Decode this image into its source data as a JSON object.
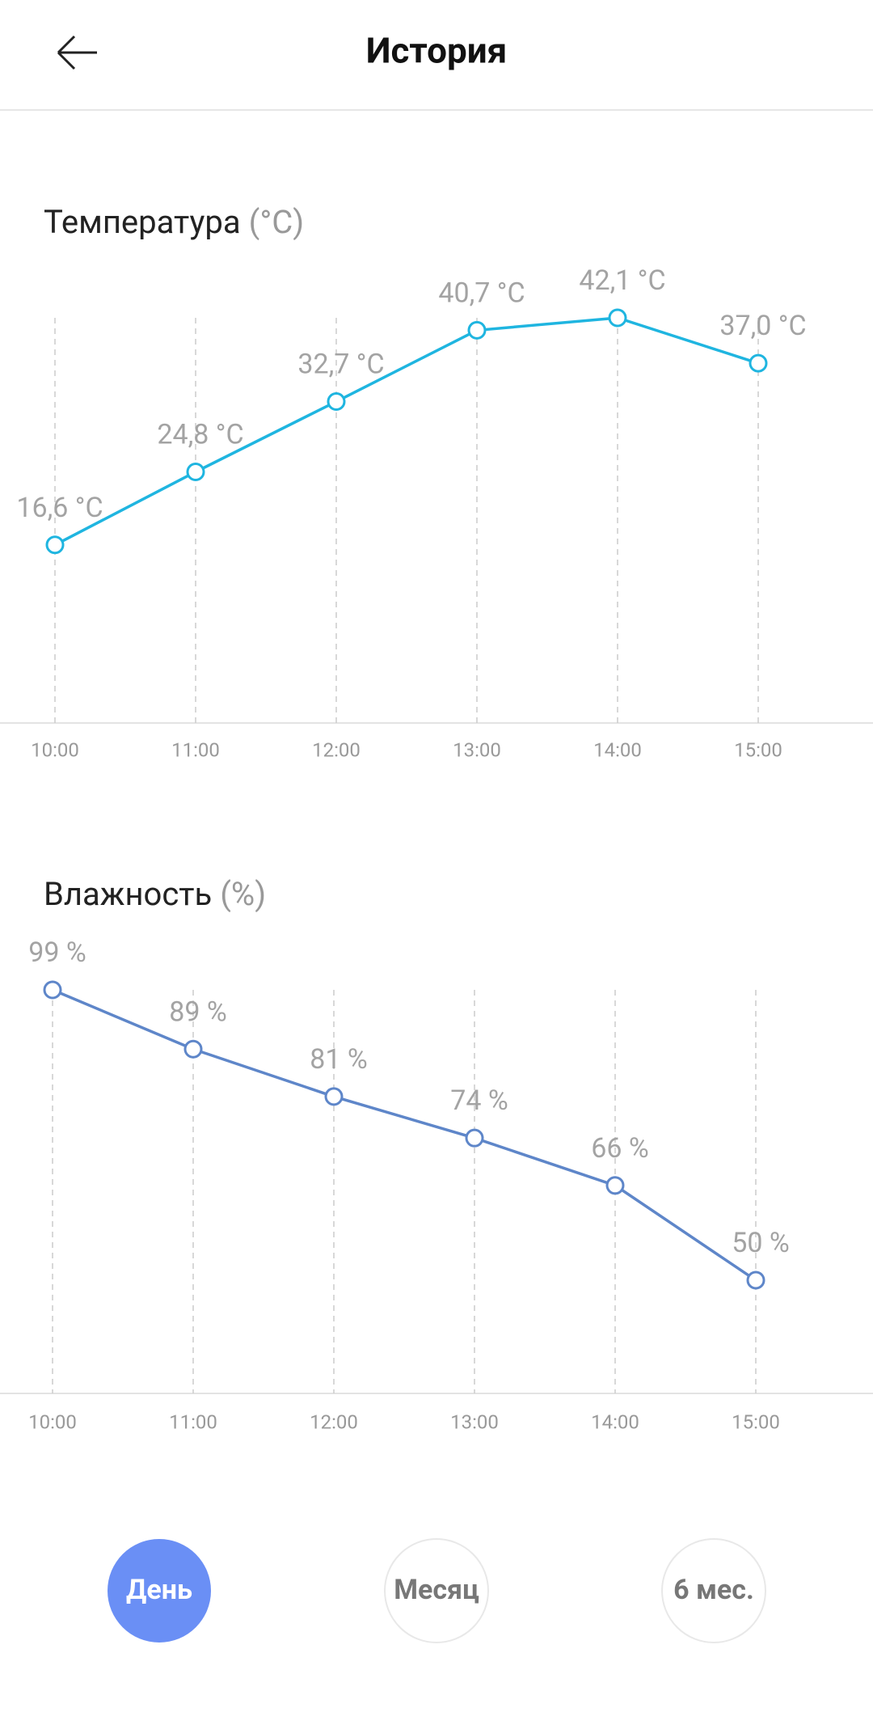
{
  "header": {
    "title": "История"
  },
  "chart_data": [
    {
      "type": "line",
      "title": "Температура",
      "unit_label": "(°C)",
      "categories": [
        "10:00",
        "11:00",
        "12:00",
        "13:00",
        "14:00",
        "15:00"
      ],
      "series": [
        {
          "color": "#1fb5e0",
          "values": [
            16.6,
            24.8,
            32.7,
            40.7,
            42.1,
            37.0
          ],
          "value_labels": [
            "16,6 °C",
            "24,8 °C",
            "32,7 °C",
            "40,7 °C",
            "42,1 °C",
            "37,0 °C"
          ]
        }
      ],
      "ylim": [
        -3.4,
        42.1
      ],
      "grid": true
    },
    {
      "type": "line",
      "title": "Влажность",
      "unit_label": "(%)",
      "categories": [
        "10:00",
        "11:00",
        "12:00",
        "13:00",
        "14:00",
        "15:00"
      ],
      "series": [
        {
          "color": "#5e86c9",
          "values": [
            99,
            89,
            81,
            74,
            66,
            50
          ],
          "value_labels": [
            "99 %",
            "89 %",
            "81 %",
            "74 %",
            "66 %",
            "50 %"
          ]
        }
      ],
      "ylim": [
        30.9,
        99
      ],
      "grid": true
    }
  ],
  "periods": {
    "labels": [
      "День",
      "Месяц",
      "6 мес."
    ],
    "active": 0,
    "active_color": "#6a8ff5"
  }
}
